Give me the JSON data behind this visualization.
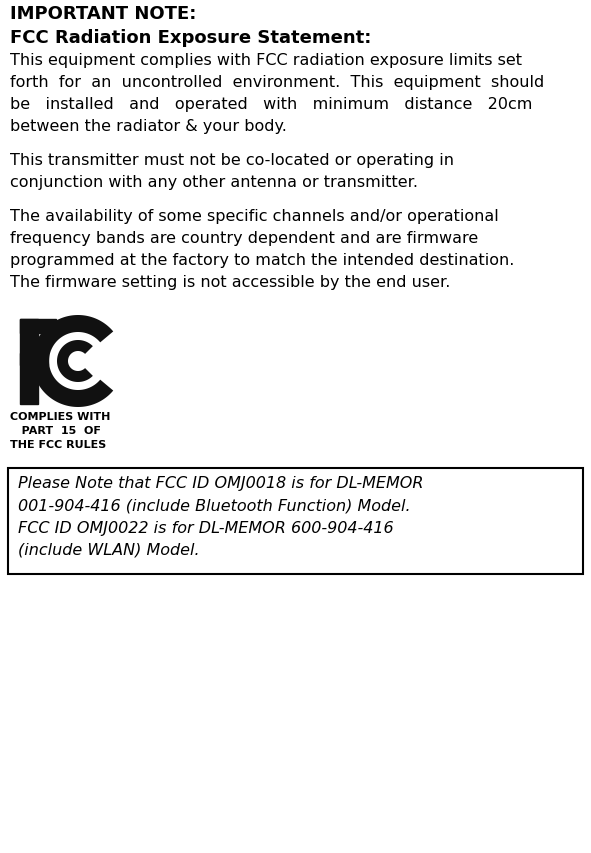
{
  "title": "IMPORTANT NOTE:",
  "subtitle": "FCC Radiation Exposure Statement:",
  "para1_lines": [
    "This equipment complies with FCC radiation exposure limits set",
    "forth  for  an  uncontrolled  environment.  This  equipment  should",
    "be   installed   and   operated   with   minimum   distance   20cm",
    "between the radiator & your body."
  ],
  "para2_lines": [
    "This transmitter must not be co-located or operating in",
    "conjunction with any other antenna or transmitter."
  ],
  "para3_lines": [
    "The availability of some specific channels and/or operational",
    "frequency bands are country dependent and are firmware",
    "programmed at the factory to match the intended destination.",
    "The firmware setting is not accessible by the end user."
  ],
  "fcc_label_lines": [
    "COMPLIES WITH",
    "   PART  15  OF",
    "THE FCC RULES"
  ],
  "box_lines": [
    "Please Note that FCC ID OMJ0018 is for DL-MEMOR",
    "001-904-416 (include Bluetooth Function) Model.",
    "FCC ID OMJ0022 is for DL-MEMOR 600-904-416",
    "(include WLAN) Model."
  ],
  "bg_color": "#ffffff",
  "text_color": "#000000",
  "fcc_logo_color": "#111111"
}
